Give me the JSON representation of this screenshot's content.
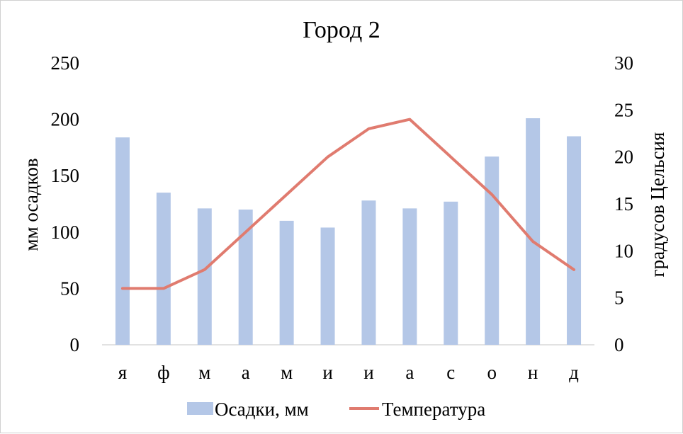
{
  "chart_data": {
    "type": "bar",
    "title": "Город 2",
    "categories": [
      "я",
      "ф",
      "м",
      "а",
      "м",
      "и",
      "и",
      "а",
      "с",
      "о",
      "н",
      "д"
    ],
    "series": [
      {
        "name": "Осадки, мм",
        "type": "bar",
        "axis": "left",
        "color": "#b4c7e7",
        "values": [
          184,
          135,
          121,
          120,
          110,
          104,
          128,
          121,
          127,
          167,
          201,
          185
        ]
      },
      {
        "name": "Температура",
        "type": "line",
        "axis": "right",
        "color": "#e07b6f",
        "values": [
          6,
          6,
          8,
          12,
          16,
          20,
          23,
          24,
          20,
          16,
          11,
          8
        ]
      }
    ],
    "ylabel": "мм осадков",
    "y2label": "градусов Цельсия",
    "ylim": [
      0,
      250
    ],
    "y2lim": [
      0,
      30
    ],
    "yticks": [
      "0",
      "50",
      "100",
      "150",
      "200",
      "250"
    ],
    "y2ticks": [
      "0",
      "5",
      "10",
      "15",
      "20",
      "25",
      "30"
    ],
    "grid": false,
    "legend": "bottom"
  }
}
